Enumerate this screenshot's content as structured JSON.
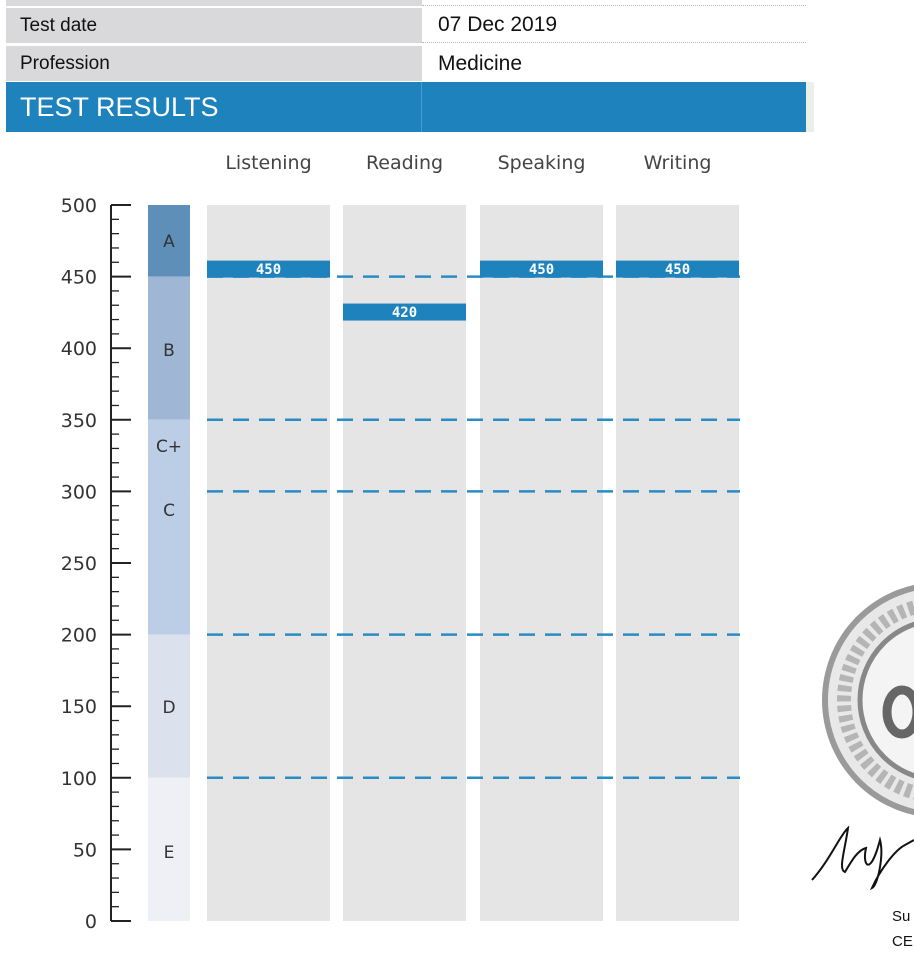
{
  "details": [
    {
      "label": "",
      "value": ""
    },
    {
      "label": "Test date",
      "value": "07 Dec 2019"
    },
    {
      "label": "Profession",
      "value": "Medicine"
    }
  ],
  "section_title": "TEST RESULTS",
  "chart_data": {
    "type": "bar",
    "categories": [
      "Listening",
      "Reading",
      "Speaking",
      "Writing"
    ],
    "values": [
      450,
      420,
      450,
      450
    ],
    "ylim": [
      0,
      500
    ],
    "yticks": [
      0,
      50,
      100,
      150,
      200,
      250,
      300,
      350,
      400,
      450,
      500
    ],
    "grade_bands": [
      {
        "grade": "A",
        "from": 450,
        "to": 500,
        "color": "#5e8fb8"
      },
      {
        "grade": "B",
        "from": 350,
        "to": 450,
        "color": "#9fb7d5"
      },
      {
        "grade": "C+",
        "from": 350,
        "to": 350,
        "color": "#bccde6"
      },
      {
        "grade": "C",
        "from": 200,
        "to": 350,
        "color": "#bccde6"
      },
      {
        "grade": "D",
        "from": 100,
        "to": 200,
        "color": "#dbe2ee"
      },
      {
        "grade": "E",
        "from": 0,
        "to": 100,
        "color": "#eef0f6"
      }
    ],
    "threshold_lines": [
      450,
      350,
      300,
      200,
      100
    ],
    "bar_color": "#1e82bd",
    "column_color": "#e6e5e6",
    "line_color": "#2a8cc4"
  },
  "seal": {
    "text": "ASSESSMENT LANGUAGE O"
  },
  "signatory": {
    "line1": "Su",
    "line2": "CE"
  }
}
